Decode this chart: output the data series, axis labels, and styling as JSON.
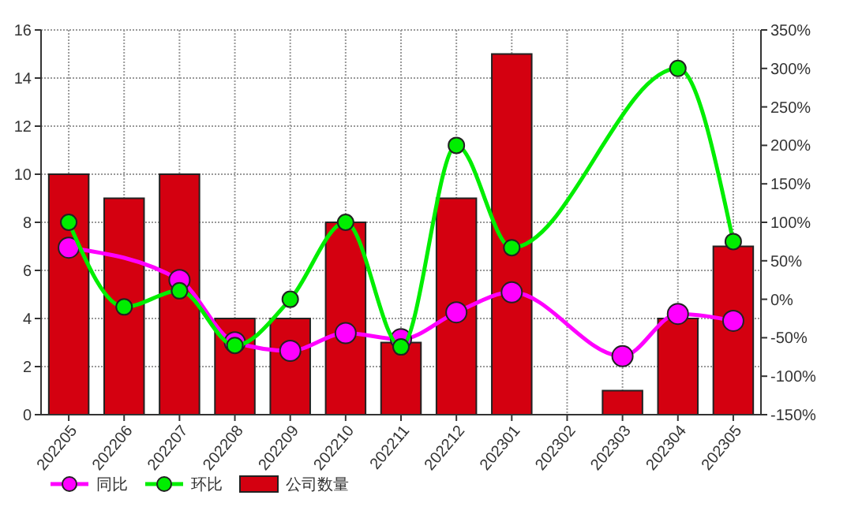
{
  "chart_data": {
    "type": "bar",
    "categories": [
      "202205",
      "202206",
      "202207",
      "202208",
      "202209",
      "202210",
      "202211",
      "202212",
      "202301",
      "202302",
      "202303",
      "202304",
      "202305"
    ],
    "series": [
      {
        "name": "公司数量",
        "color": "#d40010",
        "values": [
          10,
          9,
          10,
          4,
          4,
          8,
          3,
          9,
          15,
          0,
          1,
          4,
          7
        ]
      },
      {
        "name": "同比",
        "type": "line",
        "axis": "y2",
        "color": "#ff00ff",
        "values": [
          67,
          null,
          25,
          -56,
          -67,
          -44,
          -52,
          -17,
          9,
          null,
          -74,
          -19,
          -28
        ]
      },
      {
        "name": "环比",
        "type": "line",
        "axis": "y2",
        "color": "#00ee00",
        "values": [
          100,
          -10,
          11,
          -60,
          0,
          100,
          -62,
          200,
          67,
          null,
          null,
          300,
          75
        ]
      }
    ],
    "ylim": [
      0,
      16
    ],
    "yticks": [
      0,
      2,
      4,
      6,
      8,
      10,
      12,
      14,
      16
    ],
    "y2lim": [
      -150,
      350
    ],
    "y2ticks": [
      {
        "value": -150,
        "label": "-150%"
      },
      {
        "value": -100,
        "label": "-100%"
      },
      {
        "value": -50,
        "label": "-50%"
      },
      {
        "value": 0,
        "label": "0%"
      },
      {
        "value": 50,
        "label": "50%"
      },
      {
        "value": 100,
        "label": "100%"
      },
      {
        "value": 150,
        "label": "150%"
      },
      {
        "value": 200,
        "label": "200%"
      },
      {
        "value": 250,
        "label": "250%"
      },
      {
        "value": 300,
        "label": "300%"
      },
      {
        "value": 350,
        "label": "350%"
      }
    ],
    "grid": true,
    "legend": "bottom",
    "marker": "circle",
    "line_style": "solid"
  }
}
